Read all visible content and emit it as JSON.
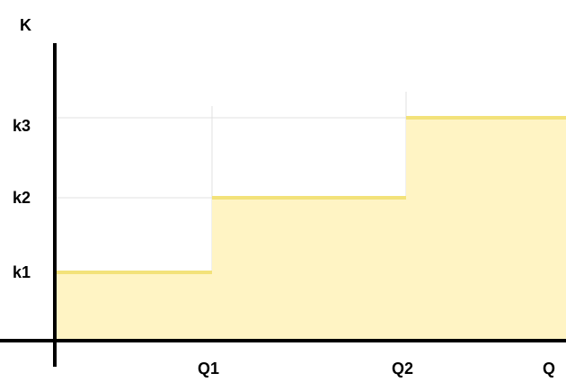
{
  "chart_data": {
    "type": "area",
    "title": "",
    "ylabel": "K",
    "xlabel": "Q",
    "x_ticks": [
      "Q1",
      "Q2"
    ],
    "y_ticks": [
      "k1",
      "k2",
      "k3"
    ],
    "steps": [
      {
        "from": "0",
        "to": "Q1",
        "level": "k1"
      },
      {
        "from": "Q1",
        "to": "Q2",
        "level": "k2"
      },
      {
        "from": "Q2",
        "to": "Q",
        "level": "k3"
      }
    ],
    "fill_color": "#fff4c4",
    "line_color": "#f3e27a",
    "grid_color": "#e0e0e0",
    "axis_color": "#000000"
  }
}
